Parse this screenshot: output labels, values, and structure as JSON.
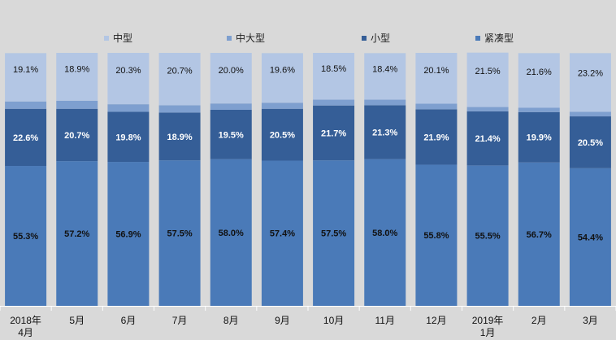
{
  "colors": {
    "background": "#d9d9d9",
    "compact": "#4a7ab8",
    "small": "#355e97",
    "mid_large": "#7e9fcf",
    "mid": "#b3c6e4",
    "axis": "#ffffff",
    "title_highlight": "#e00000"
  },
  "legend": [
    {
      "key": "mid",
      "label": "中型"
    },
    {
      "key": "mid_large",
      "label": "中大型"
    },
    {
      "key": "small",
      "label": "小型"
    },
    {
      "key": "compact",
      "label": "紧凑型"
    }
  ],
  "chart_data": {
    "type": "bar",
    "stacked": true,
    "percent": true,
    "categories": [
      "2018年\n4月",
      "5月",
      "6月",
      "7月",
      "8月",
      "9月",
      "10月",
      "11月",
      "12月",
      "2019年\n1月",
      "2月",
      "3月"
    ],
    "series": [
      {
        "key": "compact",
        "name": "紧凑型",
        "values": [
          55.3,
          57.2,
          56.9,
          57.5,
          58.0,
          57.4,
          57.5,
          58.0,
          55.8,
          55.5,
          56.7,
          54.4
        ]
      },
      {
        "key": "small",
        "name": "小型",
        "values": [
          22.6,
          20.7,
          19.8,
          18.9,
          19.5,
          20.5,
          21.7,
          21.3,
          21.9,
          21.4,
          19.9,
          20.5
        ]
      },
      {
        "key": "mid_large",
        "name": "中大型",
        "values": [
          2.9,
          3.2,
          3.0,
          2.9,
          2.5,
          2.4,
          2.3,
          2.2,
          2.2,
          1.7,
          1.7,
          1.8
        ]
      },
      {
        "key": "mid",
        "name": "中型",
        "values": [
          19.1,
          18.9,
          20.3,
          20.7,
          20.0,
          19.6,
          18.5,
          18.4,
          20.1,
          21.5,
          21.6,
          23.2
        ]
      }
    ],
    "ylim": [
      0,
      100
    ],
    "grid": false,
    "legend_position": "top"
  }
}
